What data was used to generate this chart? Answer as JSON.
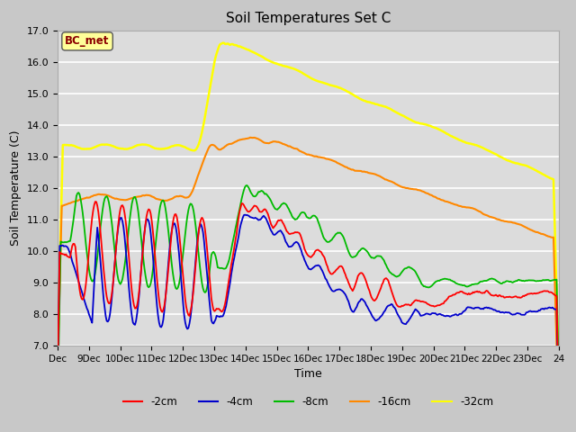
{
  "title": "Soil Temperatures Set C",
  "xlabel": "Time",
  "ylabel": "Soil Temperature (C)",
  "ylim": [
    7.0,
    17.0
  ],
  "yticks": [
    7.0,
    8.0,
    9.0,
    10.0,
    11.0,
    12.0,
    13.0,
    14.0,
    15.0,
    16.0,
    17.0
  ],
  "xtick_labels": [
    "Dec",
    "9Dec",
    "10Dec",
    "11Dec",
    "12Dec",
    "13Dec",
    "14Dec",
    "15Dec",
    "16Dec",
    "17Dec",
    "18Dec",
    "19Dec",
    "20Dec",
    "21Dec",
    "22Dec",
    "23Dec",
    "24"
  ],
  "series_colors": {
    "-2cm": "#ff0000",
    "-4cm": "#0000cc",
    "-8cm": "#00bb00",
    "-16cm": "#ff8800",
    "-32cm": "#ffff00"
  },
  "series_linewidths": {
    "-2cm": 1.3,
    "-4cm": 1.3,
    "-8cm": 1.3,
    "-16cm": 1.5,
    "-32cm": 1.8
  },
  "annotation_text": "BC_met",
  "annotation_color": "#8B0000",
  "annotation_bg": "#ffff99",
  "plot_bg": "#dcdcdc",
  "fig_bg": "#c8c8c8",
  "grid_color": "#ffffff",
  "n_points": 480
}
